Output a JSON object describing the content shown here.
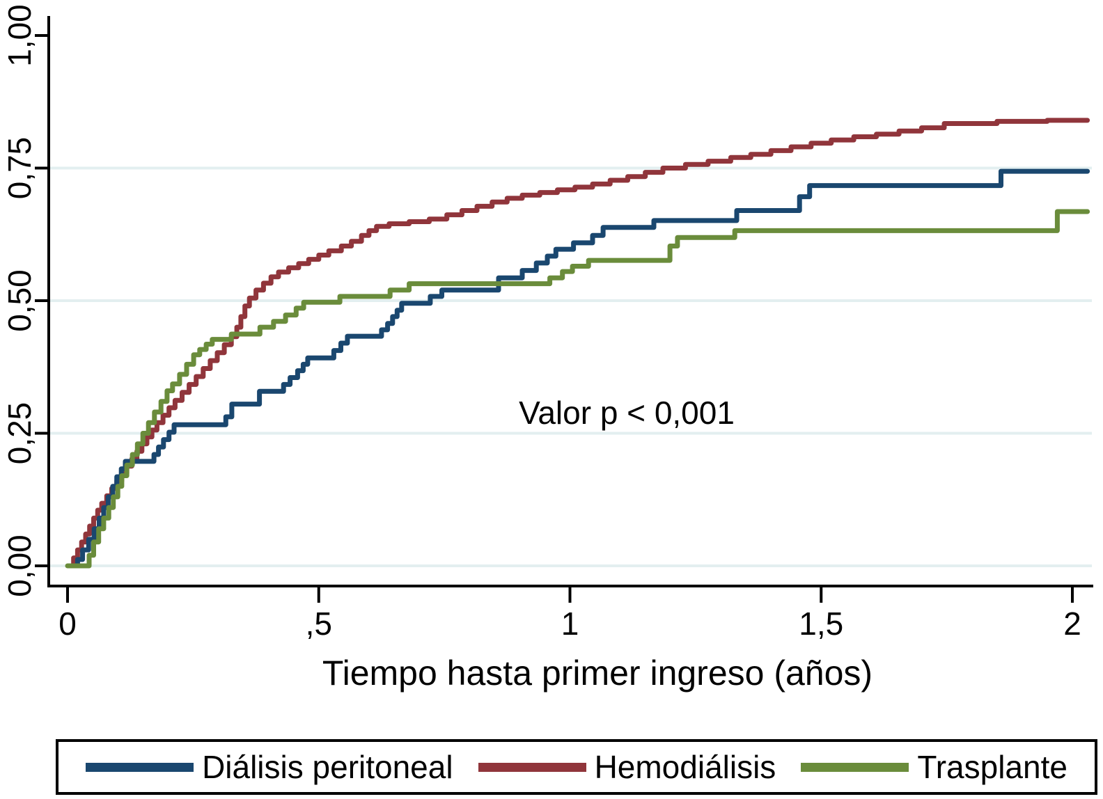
{
  "figure": {
    "background_color": "#ffffff",
    "grid_color": "#e3eff0",
    "axis_color": "#000000"
  },
  "chart_data": {
    "type": "line",
    "subtype": "kaplan-meier-step-curves",
    "title": "",
    "xlabel": "Tiempo hasta primer ingreso (años)",
    "ylabel": "",
    "xlim": [
      0,
      2.03
    ],
    "ylim": [
      0.0,
      1.0
    ],
    "grid": {
      "horizontal_at": [
        0,
        0.25,
        0.5,
        0.75
      ],
      "color": "#e3eff0"
    },
    "x_ticks": {
      "values": [
        0,
        0.5,
        1,
        1.5,
        2
      ],
      "labels": [
        "0",
        ",5",
        "1",
        "1,5",
        "2"
      ]
    },
    "y_ticks": {
      "values": [
        0,
        0.25,
        0.5,
        0.75,
        1
      ],
      "labels": [
        "0,00",
        "0,25",
        "0,50",
        "0,75",
        "1,00"
      ]
    },
    "annotation": {
      "text": "Valor p < 0,001",
      "x": 1.11,
      "y": 0.29
    },
    "legend_position": "bottom",
    "t_end": 2.03,
    "series": [
      {
        "name": "Diálisis peritoneal",
        "color": "#1a476f",
        "steps": [
          [
            0.004,
            0
          ],
          [
            0.02,
            0.012
          ],
          [
            0.03,
            0.03
          ],
          [
            0.042,
            0.05
          ],
          [
            0.053,
            0.07
          ],
          [
            0.063,
            0.09
          ],
          [
            0.072,
            0.11
          ],
          [
            0.081,
            0.13
          ],
          [
            0.09,
            0.15
          ],
          [
            0.098,
            0.168
          ],
          [
            0.107,
            0.183
          ],
          [
            0.115,
            0.197
          ],
          [
            0.172,
            0.21
          ],
          [
            0.181,
            0.224
          ],
          [
            0.191,
            0.238
          ],
          [
            0.202,
            0.252
          ],
          [
            0.212,
            0.266
          ],
          [
            0.315,
            0.281
          ],
          [
            0.327,
            0.305
          ],
          [
            0.382,
            0.329
          ],
          [
            0.43,
            0.342
          ],
          [
            0.443,
            0.355
          ],
          [
            0.458,
            0.368
          ],
          [
            0.469,
            0.38
          ],
          [
            0.478,
            0.392
          ],
          [
            0.53,
            0.406
          ],
          [
            0.544,
            0.42
          ],
          [
            0.557,
            0.433
          ],
          [
            0.625,
            0.445
          ],
          [
            0.637,
            0.457
          ],
          [
            0.647,
            0.47
          ],
          [
            0.656,
            0.482
          ],
          [
            0.665,
            0.495
          ],
          [
            0.722,
            0.508
          ],
          [
            0.745,
            0.52
          ],
          [
            0.858,
            0.543
          ],
          [
            0.905,
            0.557
          ],
          [
            0.933,
            0.571
          ],
          [
            0.955,
            0.584
          ],
          [
            0.972,
            0.597
          ],
          [
            1.007,
            0.609
          ],
          [
            1.045,
            0.623
          ],
          [
            1.066,
            0.638
          ],
          [
            1.167,
            0.651
          ],
          [
            1.332,
            0.67
          ],
          [
            1.457,
            0.696
          ],
          [
            1.477,
            0.717
          ],
          [
            1.858,
            0.744
          ]
        ]
      },
      {
        "name": "Hemodiálisis",
        "color": "#90353b",
        "steps": [
          [
            0.004,
            0
          ],
          [
            0.012,
            0.015
          ],
          [
            0.02,
            0.03
          ],
          [
            0.028,
            0.045
          ],
          [
            0.036,
            0.06
          ],
          [
            0.044,
            0.075
          ],
          [
            0.052,
            0.09
          ],
          [
            0.06,
            0.105
          ],
          [
            0.068,
            0.118
          ],
          [
            0.078,
            0.132
          ],
          [
            0.088,
            0.146
          ],
          [
            0.098,
            0.16
          ],
          [
            0.108,
            0.174
          ],
          [
            0.118,
            0.188
          ],
          [
            0.128,
            0.202
          ],
          [
            0.138,
            0.216
          ],
          [
            0.148,
            0.23
          ],
          [
            0.158,
            0.243
          ],
          [
            0.168,
            0.256
          ],
          [
            0.178,
            0.27
          ],
          [
            0.19,
            0.284
          ],
          [
            0.202,
            0.298
          ],
          [
            0.214,
            0.312
          ],
          [
            0.228,
            0.327
          ],
          [
            0.242,
            0.342
          ],
          [
            0.256,
            0.357
          ],
          [
            0.27,
            0.372
          ],
          [
            0.284,
            0.387
          ],
          [
            0.298,
            0.402
          ],
          [
            0.312,
            0.417
          ],
          [
            0.326,
            0.432
          ],
          [
            0.337,
            0.45
          ],
          [
            0.345,
            0.47
          ],
          [
            0.353,
            0.49
          ],
          [
            0.362,
            0.505
          ],
          [
            0.375,
            0.52
          ],
          [
            0.39,
            0.533
          ],
          [
            0.405,
            0.545
          ],
          [
            0.42,
            0.554
          ],
          [
            0.44,
            0.562
          ],
          [
            0.46,
            0.57
          ],
          [
            0.48,
            0.578
          ],
          [
            0.5,
            0.586
          ],
          [
            0.52,
            0.594
          ],
          [
            0.545,
            0.603
          ],
          [
            0.565,
            0.612
          ],
          [
            0.585,
            0.623
          ],
          [
            0.6,
            0.632
          ],
          [
            0.615,
            0.64
          ],
          [
            0.64,
            0.645
          ],
          [
            0.68,
            0.649
          ],
          [
            0.72,
            0.654
          ],
          [
            0.755,
            0.662
          ],
          [
            0.785,
            0.67
          ],
          [
            0.815,
            0.678
          ],
          [
            0.845,
            0.686
          ],
          [
            0.875,
            0.693
          ],
          [
            0.905,
            0.699
          ],
          [
            0.94,
            0.704
          ],
          [
            0.975,
            0.709
          ],
          [
            1.01,
            0.714
          ],
          [
            1.045,
            0.72
          ],
          [
            1.08,
            0.727
          ],
          [
            1.115,
            0.734
          ],
          [
            1.15,
            0.742
          ],
          [
            1.185,
            0.75
          ],
          [
            1.23,
            0.757
          ],
          [
            1.275,
            0.763
          ],
          [
            1.32,
            0.77
          ],
          [
            1.36,
            0.776
          ],
          [
            1.4,
            0.783
          ],
          [
            1.44,
            0.79
          ],
          [
            1.48,
            0.797
          ],
          [
            1.52,
            0.803
          ],
          [
            1.565,
            0.809
          ],
          [
            1.61,
            0.814
          ],
          [
            1.655,
            0.82
          ],
          [
            1.7,
            0.826
          ],
          [
            1.745,
            0.834
          ],
          [
            1.85,
            0.838
          ],
          [
            1.95,
            0.84
          ]
        ]
      },
      {
        "name": "Trasplante",
        "color": "#6a8c3b",
        "steps": [
          [
            0.0,
            0
          ],
          [
            0.043,
            0.02
          ],
          [
            0.052,
            0.045
          ],
          [
            0.062,
            0.07
          ],
          [
            0.072,
            0.09
          ],
          [
            0.082,
            0.11
          ],
          [
            0.091,
            0.13
          ],
          [
            0.1,
            0.15
          ],
          [
            0.108,
            0.17
          ],
          [
            0.118,
            0.19
          ],
          [
            0.129,
            0.21
          ],
          [
            0.139,
            0.23
          ],
          [
            0.15,
            0.25
          ],
          [
            0.161,
            0.27
          ],
          [
            0.173,
            0.29
          ],
          [
            0.186,
            0.31
          ],
          [
            0.198,
            0.33
          ],
          [
            0.209,
            0.343
          ],
          [
            0.223,
            0.361
          ],
          [
            0.237,
            0.38
          ],
          [
            0.251,
            0.398
          ],
          [
            0.263,
            0.408
          ],
          [
            0.276,
            0.418
          ],
          [
            0.288,
            0.427
          ],
          [
            0.326,
            0.437
          ],
          [
            0.383,
            0.45
          ],
          [
            0.41,
            0.461
          ],
          [
            0.434,
            0.473
          ],
          [
            0.455,
            0.486
          ],
          [
            0.47,
            0.497
          ],
          [
            0.542,
            0.508
          ],
          [
            0.642,
            0.52
          ],
          [
            0.68,
            0.532
          ],
          [
            0.96,
            0.543
          ],
          [
            0.985,
            0.555
          ],
          [
            1.005,
            0.565
          ],
          [
            1.037,
            0.576
          ],
          [
            1.199,
            0.603
          ],
          [
            1.214,
            0.619
          ],
          [
            1.328,
            0.632
          ],
          [
            1.97,
            0.668
          ]
        ]
      }
    ]
  }
}
